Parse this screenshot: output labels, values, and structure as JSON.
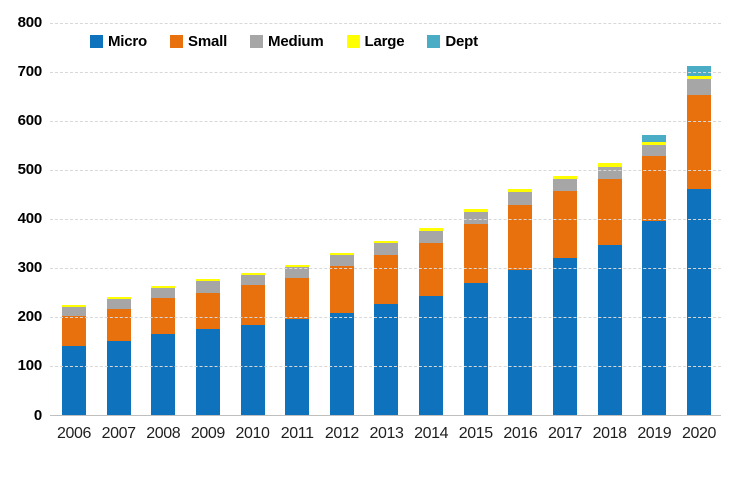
{
  "chart_data": {
    "type": "bar",
    "stacked": true,
    "title": "",
    "xlabel": "",
    "ylabel": "",
    "ylim": [
      0,
      800
    ],
    "ytick_step": 100,
    "y_tick_labels": [
      "0",
      "100",
      "200",
      "300",
      "400",
      "500",
      "600",
      "700",
      "800"
    ],
    "grid": true,
    "legend_position": "top",
    "categories": [
      "2006",
      "2007",
      "2008",
      "2009",
      "2010",
      "2011",
      "2012",
      "2013",
      "2014",
      "2015",
      "2016",
      "2017",
      "2018",
      "2019",
      "2020"
    ],
    "series": [
      {
        "name": "Micro",
        "color": "#0F72BD",
        "values": [
          142,
          152,
          166,
          176,
          184,
          196,
          208,
          227,
          244,
          271,
          297,
          321,
          347,
          396,
          461
        ]
      },
      {
        "name": "Small",
        "color": "#E8710D",
        "values": [
          60,
          66,
          74,
          74,
          82,
          85,
          97,
          100,
          108,
          120,
          133,
          136,
          136,
          133,
          192
        ]
      },
      {
        "name": "Medium",
        "color": "#A6A6A6",
        "values": [
          20,
          19,
          20,
          25,
          20,
          21,
          22,
          24,
          25,
          24,
          25,
          25,
          24,
          22,
          33
        ]
      },
      {
        "name": "Large",
        "color": "#FFFF00",
        "values": [
          4,
          4,
          4,
          4,
          4,
          4,
          4,
          4,
          5,
          6,
          6,
          6,
          7,
          6,
          6
        ]
      },
      {
        "name": "Dept",
        "color": "#4BACC6",
        "values": [
          0,
          0,
          0,
          0,
          0,
          0,
          0,
          0,
          0,
          0,
          0,
          0,
          0,
          14,
          21
        ]
      }
    ],
    "colors": {
      "gridline": "#D8D8D8",
      "axis_line": "#BFBFBF",
      "tick_text": "#000000"
    }
  }
}
